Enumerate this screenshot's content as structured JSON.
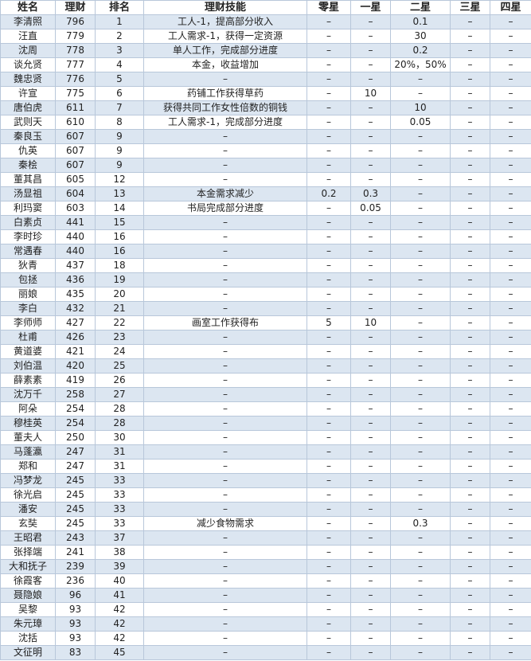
{
  "table": {
    "header": [
      "姓名",
      "理财",
      "排名",
      "理财技能",
      "零星",
      "一星",
      "二星",
      "三星",
      "四星"
    ],
    "rows": [
      [
        "李清照",
        796,
        1,
        "工人-1，提高部分收入",
        "–",
        "–",
        0.1,
        "–",
        "–"
      ],
      [
        "汪直",
        779,
        2,
        "工人需求-1，获得一定资源",
        "–",
        "–",
        30,
        "–",
        "–"
      ],
      [
        "沈周",
        778,
        3,
        "单人工作，完成部分进度",
        "–",
        "–",
        0.2,
        "–",
        "–"
      ],
      [
        "谈允贤",
        777,
        4,
        "本金，收益增加",
        "–",
        "–",
        "20%，50%",
        "–",
        "–"
      ],
      [
        "魏忠贤",
        776,
        5,
        "–",
        "–",
        "–",
        "–",
        "–",
        "–"
      ],
      [
        "许宣",
        775,
        6,
        "药铺工作获得草药",
        "–",
        10,
        "–",
        "–",
        "–"
      ],
      [
        "唐伯虎",
        611,
        7,
        "获得共同工作女性倍数的铜钱",
        "–",
        "–",
        10,
        "–",
        "–"
      ],
      [
        "武则天",
        610,
        8,
        "工人需求-1，完成部分进度",
        "–",
        "–",
        0.05,
        "–",
        "–"
      ],
      [
        "秦良玉",
        607,
        9,
        "–",
        "–",
        "–",
        "–",
        "–",
        "–"
      ],
      [
        "仇英",
        607,
        9,
        "–",
        "–",
        "–",
        "–",
        "–",
        "–"
      ],
      [
        "秦桧",
        607,
        9,
        "–",
        "–",
        "–",
        "–",
        "–",
        "–"
      ],
      [
        "董其昌",
        605,
        12,
        "–",
        "–",
        "–",
        "–",
        "–",
        "–"
      ],
      [
        "汤显祖",
        604,
        13,
        "本金需求减少",
        0.2,
        0.3,
        "–",
        "–",
        "–"
      ],
      [
        "利玛窦",
        603,
        14,
        "书局完成部分进度",
        "–",
        0.05,
        "–",
        "–",
        "–"
      ],
      [
        "白素贞",
        441,
        15,
        "–",
        "–",
        "–",
        "–",
        "–",
        "–"
      ],
      [
        "李时珍",
        440,
        16,
        "–",
        "–",
        "–",
        "–",
        "–",
        "–"
      ],
      [
        "常遇春",
        440,
        16,
        "–",
        "–",
        "–",
        "–",
        "–",
        "–"
      ],
      [
        "狄青",
        437,
        18,
        "–",
        "–",
        "–",
        "–",
        "–",
        "–"
      ],
      [
        "包拯",
        436,
        19,
        "–",
        "–",
        "–",
        "–",
        "–",
        "–"
      ],
      [
        "丽娘",
        435,
        20,
        "–",
        "–",
        "–",
        "–",
        "–",
        "–"
      ],
      [
        "李白",
        432,
        21,
        "–",
        "–",
        "–",
        "–",
        "–",
        "–"
      ],
      [
        "李师师",
        427,
        22,
        "画室工作获得布",
        5,
        10,
        "–",
        "–",
        "–"
      ],
      [
        "杜甫",
        426,
        23,
        "–",
        "–",
        "–",
        "–",
        "–",
        "–"
      ],
      [
        "黄道婆",
        421,
        24,
        "–",
        "–",
        "–",
        "–",
        "–",
        "–"
      ],
      [
        "刘伯温",
        420,
        25,
        "–",
        "–",
        "–",
        "–",
        "–",
        "–"
      ],
      [
        "薛素素",
        419,
        26,
        "–",
        "–",
        "–",
        "–",
        "–",
        "–"
      ],
      [
        "沈万千",
        258,
        27,
        "–",
        "–",
        "–",
        "–",
        "–",
        "–"
      ],
      [
        "阿朵",
        254,
        28,
        "–",
        "–",
        "–",
        "–",
        "–",
        "–"
      ],
      [
        "穆桂英",
        254,
        28,
        "–",
        "–",
        "–",
        "–",
        "–",
        "–"
      ],
      [
        "董夫人",
        250,
        30,
        "–",
        "–",
        "–",
        "–",
        "–",
        "–"
      ],
      [
        "马蓬瀛",
        247,
        31,
        "–",
        "–",
        "–",
        "–",
        "–",
        "–"
      ],
      [
        "郑和",
        247,
        31,
        "–",
        "–",
        "–",
        "–",
        "–",
        "–"
      ],
      [
        "冯梦龙",
        245,
        33,
        "–",
        "–",
        "–",
        "–",
        "–",
        "–"
      ],
      [
        "徐光启",
        245,
        33,
        "–",
        "–",
        "–",
        "–",
        "–",
        "–"
      ],
      [
        "潘安",
        245,
        33,
        "–",
        "–",
        "–",
        "–",
        "–",
        "–"
      ],
      [
        "玄奘",
        245,
        33,
        "减少食物需求",
        "–",
        "–",
        0.3,
        "–",
        "–"
      ],
      [
        "王昭君",
        243,
        37,
        "–",
        "–",
        "–",
        "–",
        "–",
        "–"
      ],
      [
        "张择端",
        241,
        38,
        "–",
        "–",
        "–",
        "–",
        "–",
        "–"
      ],
      [
        "大和抚子",
        239,
        39,
        "–",
        "–",
        "–",
        "–",
        "–",
        "–"
      ],
      [
        "徐霞客",
        236,
        40,
        "–",
        "–",
        "–",
        "–",
        "–",
        "–"
      ],
      [
        "聂隐娘",
        96,
        41,
        "–",
        "–",
        "–",
        "–",
        "–",
        "–"
      ],
      [
        "吴黎",
        93,
        42,
        "–",
        "–",
        "–",
        "–",
        "–",
        "–"
      ],
      [
        "朱元璋",
        93,
        42,
        "–",
        "–",
        "–",
        "–",
        "–",
        "–"
      ],
      [
        "沈括",
        93,
        42,
        "–",
        "–",
        "–",
        "–",
        "–",
        "–"
      ],
      [
        "文征明",
        83,
        45,
        "–",
        "–",
        "–",
        "–",
        "–",
        "–"
      ]
    ]
  }
}
